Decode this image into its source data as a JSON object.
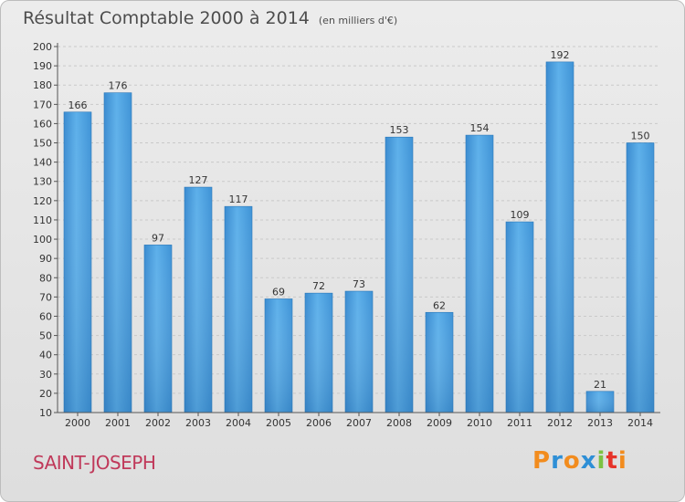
{
  "header": {
    "title": "Résultat Comptable 2000 à 2014",
    "unit": "(en milliers d'€)"
  },
  "footer": {
    "commune": "SAINT-JOSEPH",
    "logo_text": "Proxiti"
  },
  "colors": {
    "bar_light": "#5aaee8",
    "bar_dark": "#2e7fc4",
    "commune": "#c0395a",
    "logo_letters": [
      "#f28c1e",
      "#2e8fd6",
      "#f28c1e",
      "#2e8fd6",
      "#7cc142",
      "#e6332a",
      "#f28c1e"
    ]
  },
  "chart_data": {
    "type": "bar",
    "title": "Résultat Comptable 2000 à 2014",
    "xlabel": "",
    "ylabel": "",
    "categories": [
      "2000",
      "2001",
      "2002",
      "2003",
      "2004",
      "2005",
      "2006",
      "2007",
      "2008",
      "2009",
      "2010",
      "2011",
      "2012",
      "2013",
      "2014"
    ],
    "values": [
      166,
      176,
      97,
      127,
      117,
      69,
      72,
      73,
      153,
      62,
      154,
      109,
      192,
      21,
      150
    ],
    "ylim": [
      10,
      200
    ],
    "yticks": [
      10,
      20,
      30,
      40,
      50,
      60,
      70,
      80,
      90,
      100,
      110,
      120,
      130,
      140,
      150,
      160,
      170,
      180,
      190,
      200
    ],
    "grid": true
  }
}
